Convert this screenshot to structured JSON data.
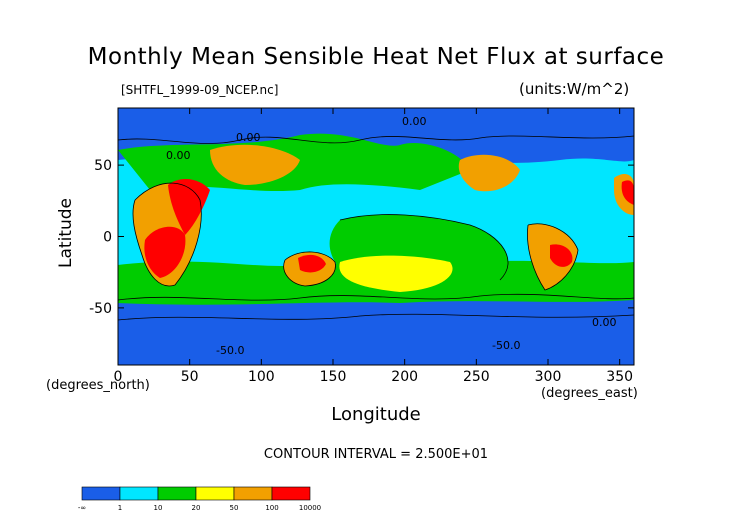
{
  "chart_data": {
    "type": "heatmap",
    "title": "Monthly Mean Sensible Heat Net Flux at surface",
    "subtitle": "[SHTFL_1999-09_NCEP.nc]",
    "units": "(units:W/m^2)",
    "xlabel": "Longitude",
    "ylabel": "Latitude",
    "x_unit_label": "(degrees_east)",
    "y_unit_label": "(degrees_north)",
    "xlim": [
      0,
      360
    ],
    "ylim": [
      -90,
      90
    ],
    "x_ticks": [
      "0",
      "50",
      "100",
      "150",
      "200",
      "250",
      "300",
      "350"
    ],
    "y_ticks": [
      "50",
      "0",
      "-50"
    ],
    "contour_interval": "CONTOUR INTERVAL = 2.500E+01",
    "contour_labels": [
      "0.00",
      "0.00",
      "0.00",
      "-50.0",
      "-50.0",
      "0.00"
    ],
    "colorbar": {
      "labels": [
        "-∞",
        "1",
        "10",
        "20",
        "50",
        "100",
        "10000"
      ],
      "colors": [
        "#1a5ee8",
        "#00e6ff",
        "#00cc00",
        "#ffff00",
        "#f2a000",
        "#ff0000"
      ]
    },
    "background_color": "#1a5ee8"
  }
}
